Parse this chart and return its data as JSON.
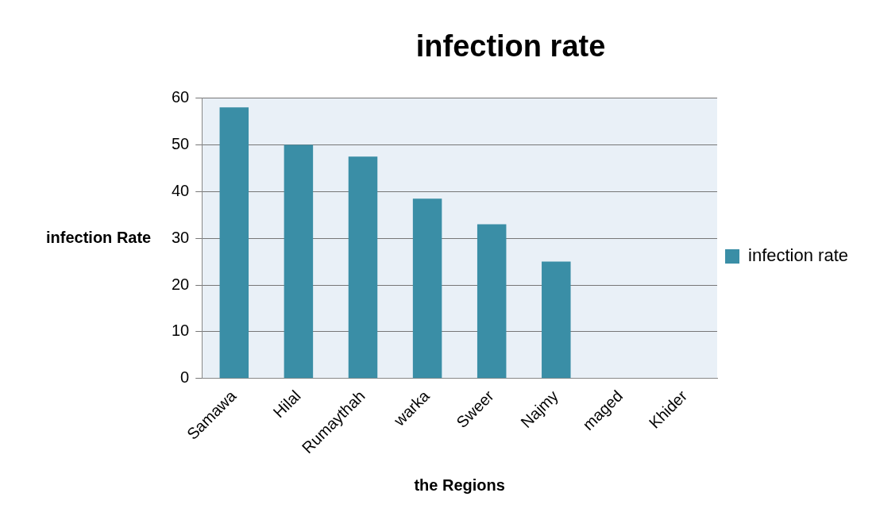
{
  "chart_data": {
    "type": "bar",
    "title": "infection rate",
    "xlabel": "the Regions",
    "ylabel": "infection Rate",
    "categories": [
      "Samawa",
      "Hilal",
      "Rumaythah",
      "warka",
      "Sweer",
      "Najmy",
      "maged",
      "Khider"
    ],
    "series": [
      {
        "name": "infection rate",
        "color": "#3a8ea6",
        "values": [
          58,
          50,
          47.5,
          38.5,
          33,
          25,
          0,
          0
        ]
      }
    ],
    "ylim": [
      0,
      60
    ],
    "yticks": [
      0,
      10,
      20,
      30,
      40,
      50,
      60
    ],
    "grid": "y",
    "legend": "right"
  }
}
